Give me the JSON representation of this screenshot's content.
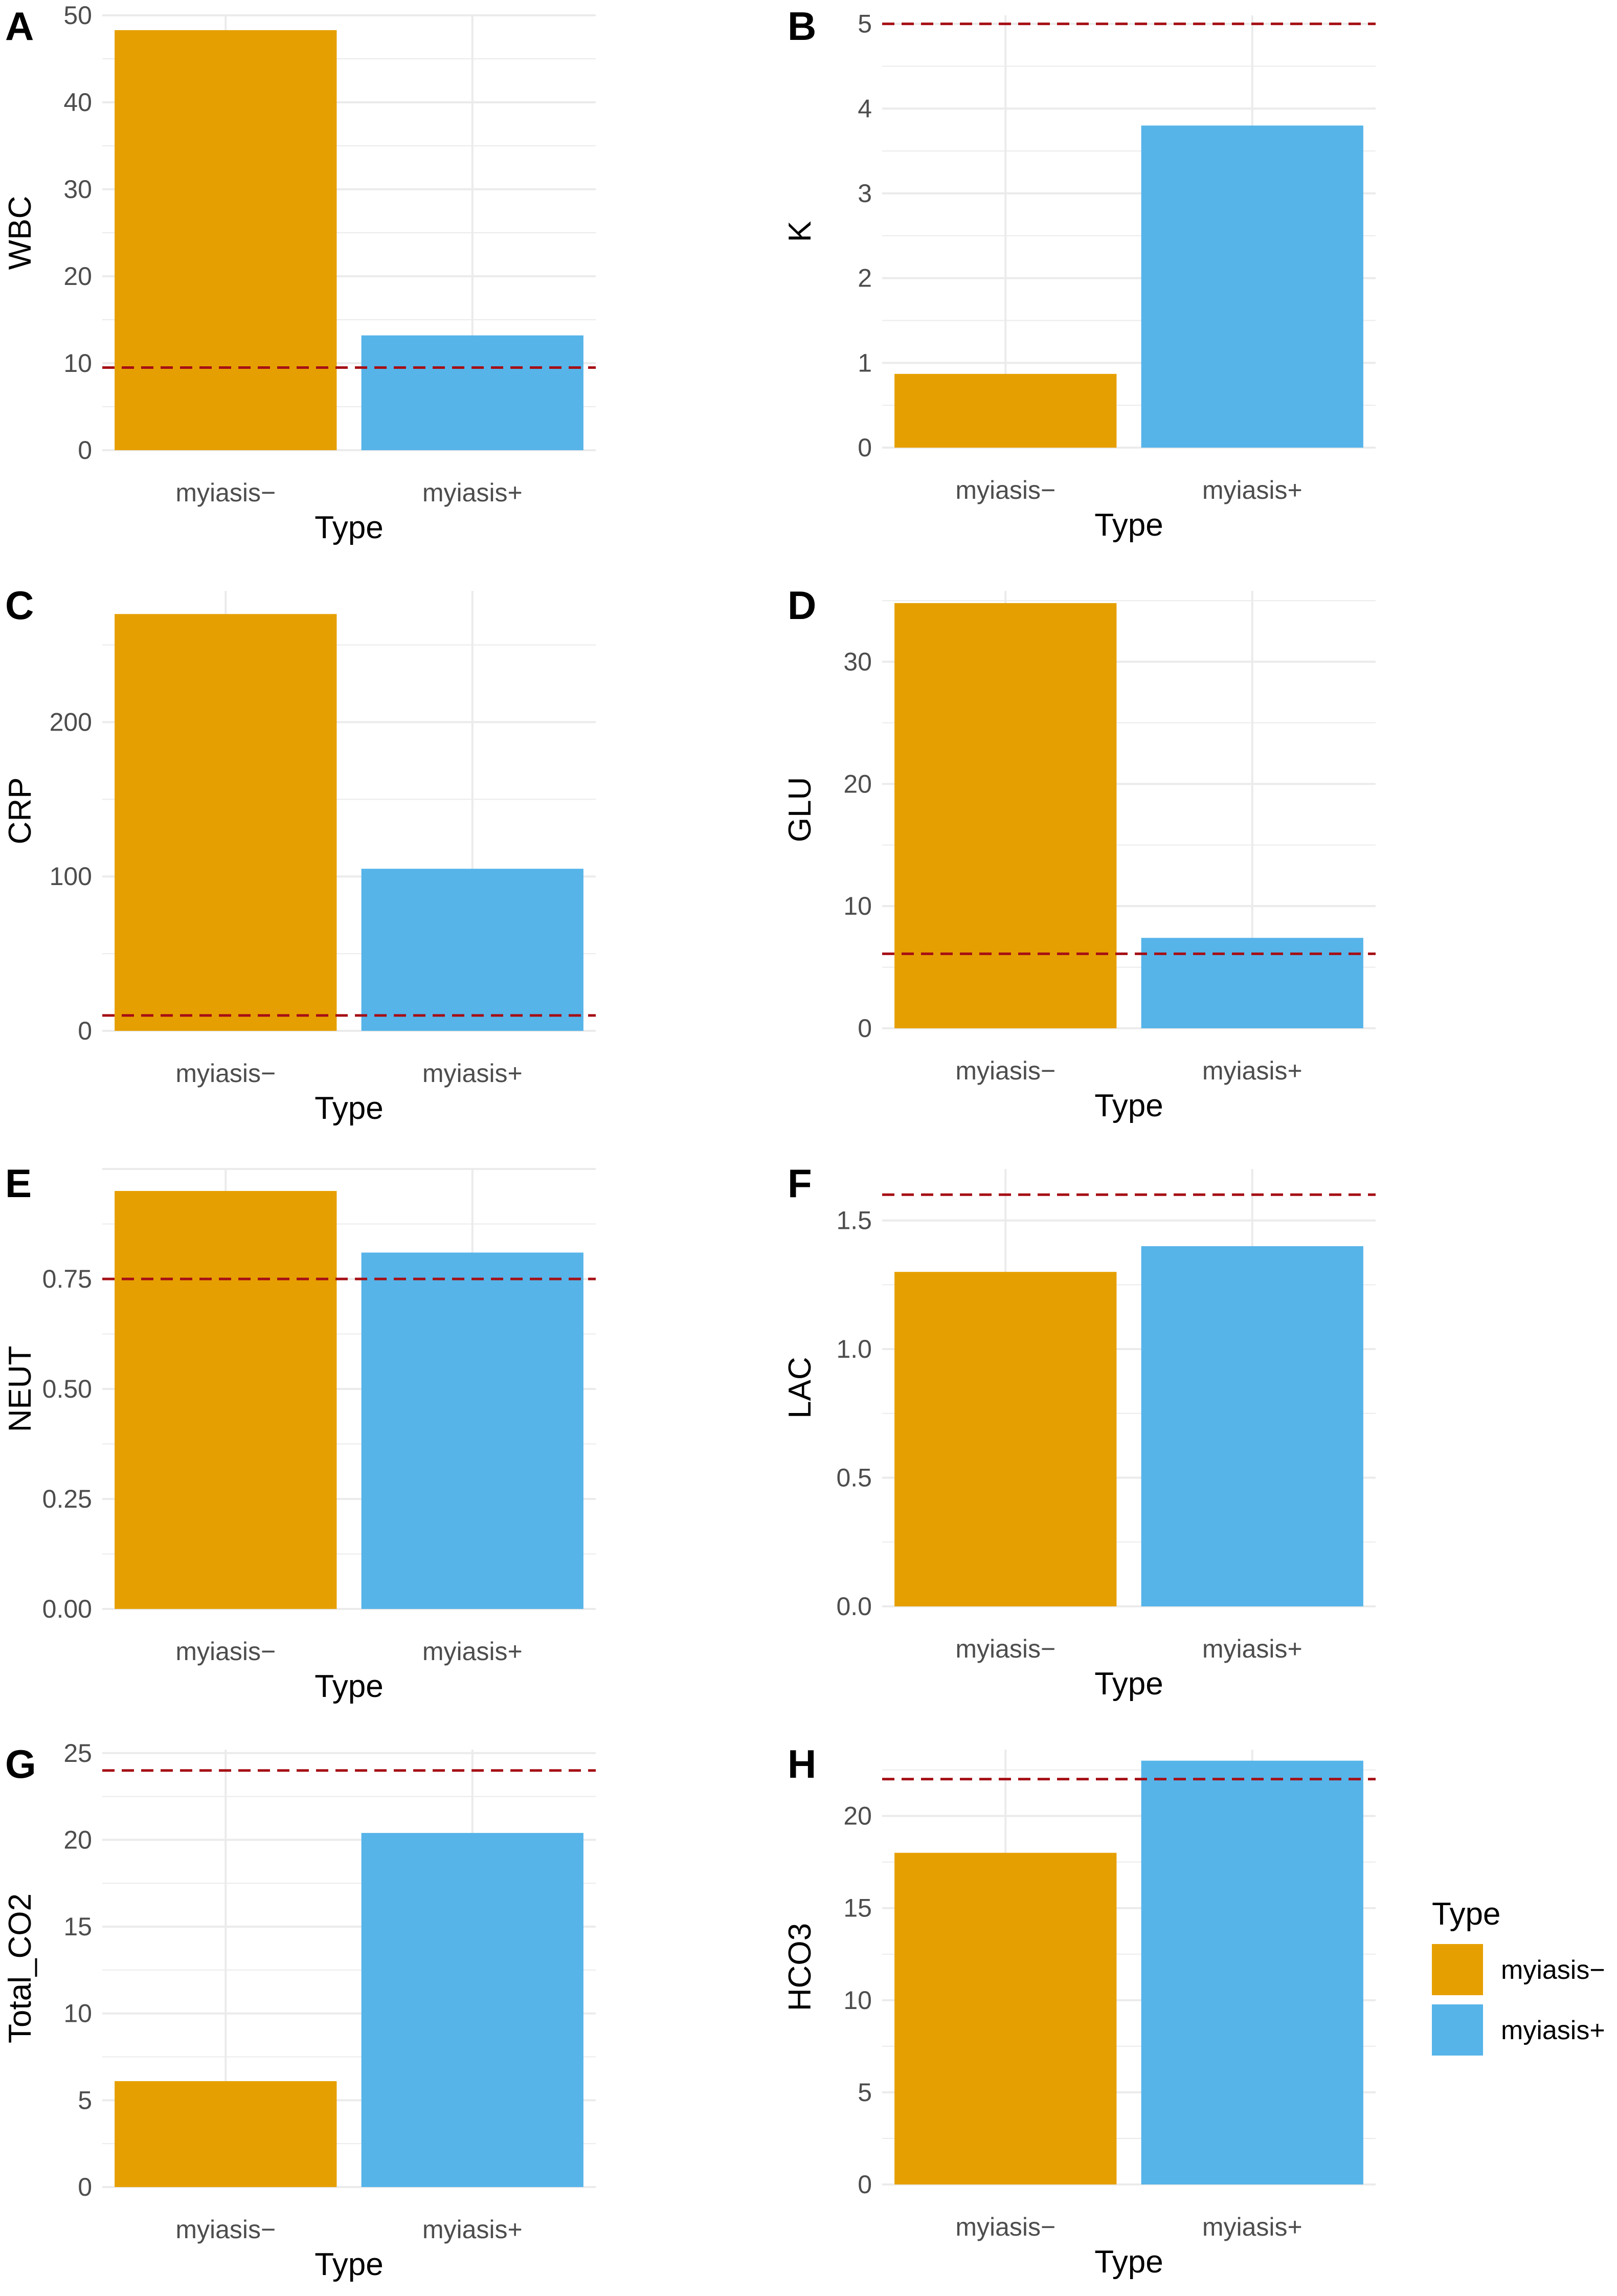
{
  "colors": {
    "myiasis_neg": "#E69F00",
    "myiasis_pos": "#56B4E9",
    "reference_line": "#A50F15",
    "grid": "#EBEBEB"
  },
  "legend": {
    "title": "Type",
    "entries": [
      {
        "label": "myiasis−",
        "color": "#E69F00"
      },
      {
        "label": "myiasis+",
        "color": "#56B4E9"
      }
    ]
  },
  "chart_data": [
    {
      "panel": "A",
      "type": "bar",
      "title": "",
      "xlabel": "Type",
      "ylabel": "WBC",
      "categories": [
        "myiasis−",
        "myiasis+"
      ],
      "values": [
        48.3,
        13.2
      ],
      "reference_line": 9.5,
      "ylim": [
        0,
        50
      ],
      "yticks": [
        0,
        10,
        20,
        30,
        40,
        50
      ],
      "ytick_labels": [
        "0",
        "10",
        "20",
        "30",
        "40",
        "50"
      ]
    },
    {
      "panel": "B",
      "type": "bar",
      "title": "",
      "xlabel": "Type",
      "ylabel": "K",
      "categories": [
        "myiasis−",
        "myiasis+"
      ],
      "values": [
        0.87,
        3.8
      ],
      "reference_line": 5.0,
      "ylim": [
        0,
        5.1
      ],
      "yticks": [
        0,
        1,
        2,
        3,
        4,
        5
      ],
      "ytick_labels": [
        "0",
        "1",
        "2",
        "3",
        "4",
        "5"
      ]
    },
    {
      "panel": "C",
      "type": "bar",
      "title": "",
      "xlabel": "Type",
      "ylabel": "CRP",
      "categories": [
        "myiasis−",
        "myiasis+"
      ],
      "values": [
        270,
        105
      ],
      "reference_line": 10,
      "ylim": [
        0,
        285
      ],
      "yticks": [
        0,
        100,
        200
      ],
      "ytick_labels": [
        "0",
        "100",
        "200"
      ]
    },
    {
      "panel": "D",
      "type": "bar",
      "title": "",
      "xlabel": "Type",
      "ylabel": "GLU",
      "categories": [
        "myiasis−",
        "myiasis+"
      ],
      "values": [
        34.8,
        7.4
      ],
      "reference_line": 6.1,
      "ylim": [
        0,
        35.8
      ],
      "yticks": [
        0,
        10,
        20,
        30
      ],
      "ytick_labels": [
        "0",
        "10",
        "20",
        "30"
      ]
    },
    {
      "panel": "E",
      "type": "bar",
      "title": "",
      "xlabel": "Type",
      "ylabel": "NEUT",
      "categories": [
        "myiasis−",
        "myiasis+"
      ],
      "values": [
        0.95,
        0.81
      ],
      "reference_line": 0.75,
      "ylim": [
        0,
        1.0
      ],
      "yticks": [
        0,
        0.25,
        0.5,
        0.75
      ],
      "ytick_labels": [
        "0.00",
        "0.25",
        "0.50",
        "0.75"
      ]
    },
    {
      "panel": "F",
      "type": "bar",
      "title": "",
      "xlabel": "Type",
      "ylabel": "LAC",
      "categories": [
        "myiasis−",
        "myiasis+"
      ],
      "values": [
        1.3,
        1.4
      ],
      "reference_line": 1.6,
      "ylim": [
        0,
        1.7
      ],
      "yticks": [
        0,
        0.5,
        1.0,
        1.5
      ],
      "ytick_labels": [
        "0.0",
        "0.5",
        "1.0",
        "1.5"
      ]
    },
    {
      "panel": "G",
      "type": "bar",
      "title": "",
      "xlabel": "Type",
      "ylabel": "Total_CO2",
      "categories": [
        "myiasis−",
        "myiasis+"
      ],
      "values": [
        6.1,
        20.4
      ],
      "reference_line": 24,
      "ylim": [
        0,
        25.2
      ],
      "yticks": [
        0,
        5,
        10,
        15,
        20,
        25
      ],
      "ytick_labels": [
        "0",
        "5",
        "10",
        "15",
        "20",
        "25"
      ]
    },
    {
      "panel": "H",
      "type": "bar",
      "title": "",
      "xlabel": "Type",
      "ylabel": "HCO3",
      "categories": [
        "myiasis−",
        "myiasis+"
      ],
      "values": [
        18,
        23
      ],
      "reference_line": 22,
      "ylim": [
        0,
        23.6
      ],
      "yticks": [
        0,
        5,
        10,
        15,
        20
      ],
      "ytick_labels": [
        "0",
        "5",
        "10",
        "15",
        "20"
      ]
    }
  ]
}
